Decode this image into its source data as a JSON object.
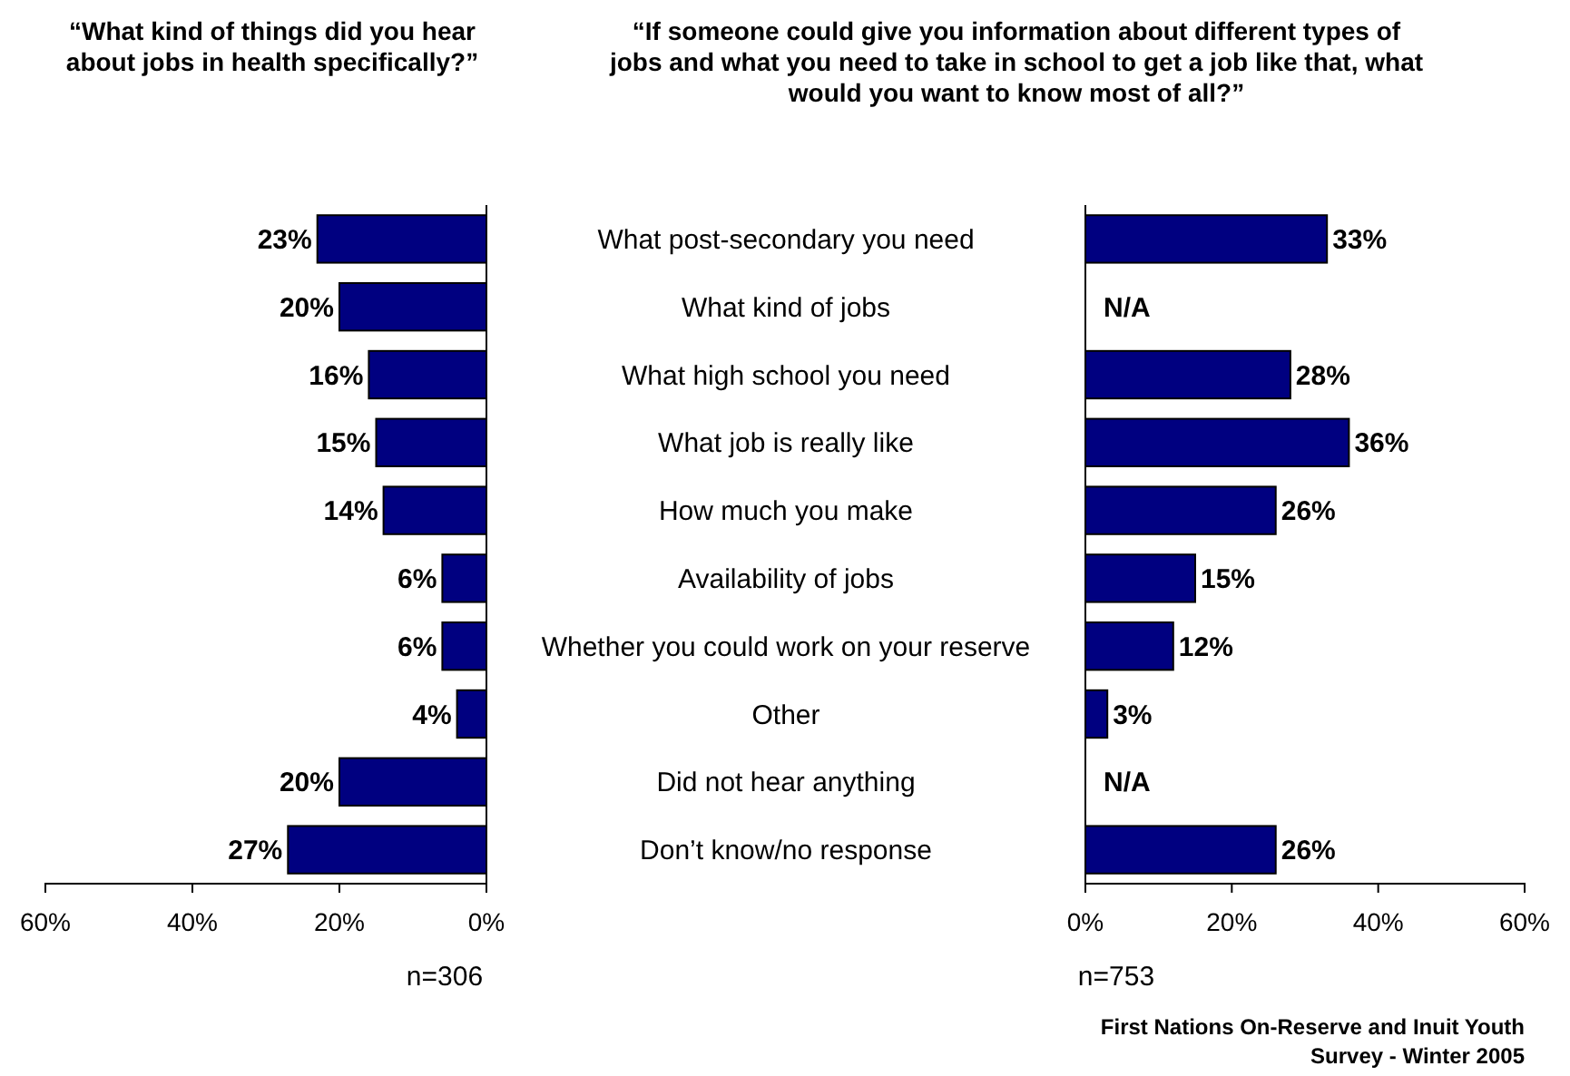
{
  "chart_data": [
    {
      "type": "bar",
      "orientation": "horizontal",
      "title": "“What kind of things did you hear about jobs in health specifically?”",
      "categories": [
        "What post-secondary you need",
        "What kind of jobs",
        "What high school you need",
        "What job is really like",
        "How much you make",
        "Availability of jobs",
        "Whether you could work on your reserve",
        "Other",
        "Did not hear anything",
        "Don’t know/no response"
      ],
      "values": [
        23,
        20,
        16,
        15,
        14,
        6,
        6,
        4,
        20,
        27
      ],
      "value_labels": [
        "23%",
        "20%",
        "16%",
        "15%",
        "14%",
        "6%",
        "6%",
        "4%",
        "20%",
        "27%"
      ],
      "color": "#000080",
      "xlim": [
        60,
        0
      ],
      "xticks": [
        {
          "value": 60,
          "label": "60%"
        },
        {
          "value": 40,
          "label": "40%"
        },
        {
          "value": 20,
          "label": "20%"
        },
        {
          "value": 0,
          "label": "0%"
        }
      ],
      "annotations": [
        "n=306"
      ]
    },
    {
      "type": "bar",
      "orientation": "horizontal",
      "title": "“If someone could give you information about different types of jobs and what you need to take in school to get a job like that, what would you want to know most of all?”",
      "categories": [
        "What post-secondary you need",
        "What kind of jobs",
        "What high school you need",
        "What job is really like",
        "How much you make",
        "Availability of jobs",
        "Whether you could work on your reserve",
        "Other",
        "Did not hear anything",
        "Don’t know/no response"
      ],
      "values": [
        33,
        null,
        28,
        36,
        26,
        15,
        12,
        3,
        null,
        26
      ],
      "value_labels": [
        "33%",
        "N/A",
        "28%",
        "36%",
        "26%",
        "15%",
        "12%",
        "3%",
        "N/A",
        "26%"
      ],
      "color": "#000080",
      "xlim": [
        0,
        60
      ],
      "xticks": [
        {
          "value": 0,
          "label": "0%"
        },
        {
          "value": 20,
          "label": "20%"
        },
        {
          "value": 40,
          "label": "40%"
        },
        {
          "value": 60,
          "label": "60%"
        }
      ],
      "tick_labels": "x",
      "annotations": [
        "n=753",
        "First Nations On-Reserve and Inuit Youth Survey - Winter 2005"
      ]
    }
  ]
}
